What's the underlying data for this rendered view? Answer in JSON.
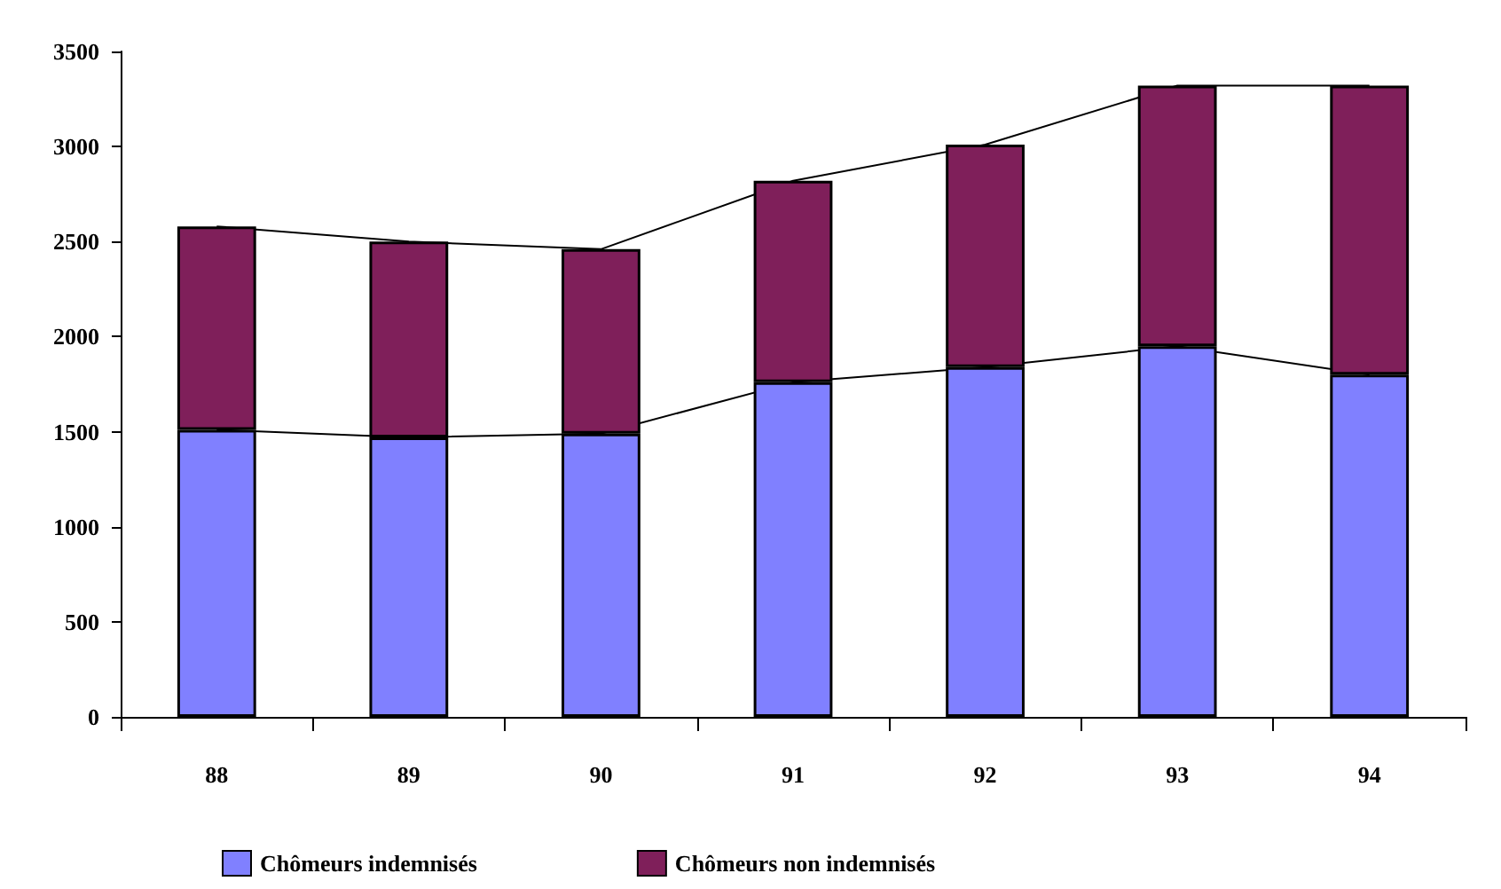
{
  "chart_data": {
    "type": "bar",
    "stacked": true,
    "categories": [
      "88",
      "89",
      "90",
      "91",
      "92",
      "93",
      "94"
    ],
    "series": [
      {
        "name": "Chômeurs indemnisés",
        "color": "#8080ff",
        "values": [
          1510,
          1470,
          1490,
          1760,
          1840,
          1950,
          1800
        ]
      },
      {
        "name": "Chômeurs non indemnisés",
        "color": "#7f1f5a",
        "values": [
          1070,
          1030,
          970,
          1060,
          1170,
          1370,
          1520
        ]
      }
    ],
    "ylim": [
      0,
      3500
    ],
    "yticks": [
      0,
      500,
      1000,
      1500,
      2000,
      2500,
      3000,
      3500
    ],
    "grid": false,
    "legend": "bottom"
  }
}
